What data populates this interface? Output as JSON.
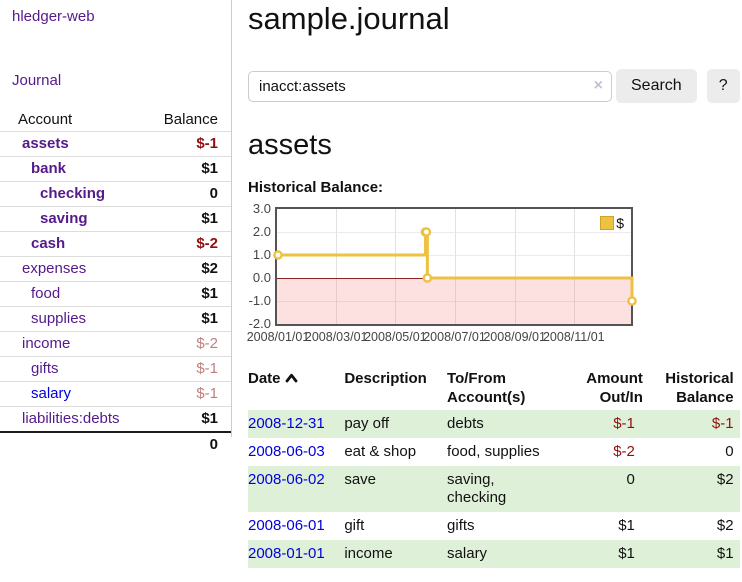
{
  "sidebar": {
    "brand": "hledger-web",
    "nav": {
      "journal": "Journal"
    },
    "accounts_table": {
      "headers": {
        "account": "Account",
        "balance": "Balance"
      },
      "rows": [
        {
          "name": "assets",
          "depth": 0,
          "row_class": "emph",
          "balance": "$-1",
          "balance_class": "neg-strong"
        },
        {
          "name": "bank",
          "depth": 1,
          "row_class": "emph",
          "balance": "$1",
          "balance_class": ""
        },
        {
          "name": "checking",
          "depth": 2,
          "row_class": "emph",
          "balance": "0",
          "balance_class": ""
        },
        {
          "name": "saving",
          "depth": 2,
          "row_class": "emph",
          "balance": "$1",
          "balance_class": ""
        },
        {
          "name": "cash",
          "depth": 1,
          "row_class": "emph",
          "balance": "$-2",
          "balance_class": "neg-strong"
        },
        {
          "name": "expenses",
          "depth": 0,
          "row_class": "",
          "balance": "$2",
          "balance_class": ""
        },
        {
          "name": "food",
          "depth": 1,
          "row_class": "",
          "balance": "$1",
          "balance_class": ""
        },
        {
          "name": "supplies",
          "depth": 1,
          "row_class": "",
          "balance": "$1",
          "balance_class": ""
        },
        {
          "name": "income",
          "depth": 0,
          "row_class": "",
          "balance": "$-2",
          "balance_class": "neg-dim"
        },
        {
          "name": "gifts",
          "depth": 1,
          "row_class": "",
          "balance": "$-1",
          "balance_class": "neg-dim"
        },
        {
          "name": "salary",
          "depth": 1,
          "row_class": "",
          "link_class": "blue",
          "balance": "$-1",
          "balance_class": "neg-dim"
        },
        {
          "name": "liabilities:debts",
          "depth": 0,
          "row_class": "",
          "balance": "$1",
          "balance_class": ""
        }
      ],
      "total": "0"
    }
  },
  "header": {
    "title": "sample.journal"
  },
  "search": {
    "query": "inacct:assets",
    "clear_icon": "×",
    "button": "Search",
    "help_button": "?"
  },
  "account_page": {
    "title": "assets",
    "chart_label": "Historical Balance:"
  },
  "chart_data": {
    "type": "line",
    "title": "Historical Balance:",
    "step_line": true,
    "x_start": "2008/01/01",
    "x_end": "2008/12/31",
    "ylim": [
      -2.0,
      3.0
    ],
    "yticks": [
      "3.0",
      "2.0",
      "1.0",
      "0.0",
      "-1.0",
      "-2.0"
    ],
    "xticks": [
      "2008/01/01",
      "2008/03/01",
      "2008/05/01",
      "2008/07/01",
      "2008/09/01",
      "2008/11/01"
    ],
    "grid": true,
    "legend_position": "top-right",
    "negative_region_color": "#fbdada",
    "zero_line_color": "#8c2423",
    "series": [
      {
        "name": "$",
        "color": "#edc240",
        "points": [
          {
            "date": "2008-01-01",
            "value": 1.0
          },
          {
            "date": "2008-06-01",
            "value": 2.0
          },
          {
            "date": "2008-06-02",
            "value": 2.0
          },
          {
            "date": "2008-06-03",
            "value": 0.0
          },
          {
            "date": "2008-12-31",
            "value": -1.0
          }
        ]
      }
    ]
  },
  "register": {
    "headers": {
      "date": "Date",
      "description": "Description",
      "accounts": "To/From\nAccount(s)",
      "amount": "Amount\nOut/In",
      "balance": "Historical\nBalance"
    },
    "rows": [
      {
        "date": "2008-12-31",
        "description": "pay off",
        "accounts": "debts",
        "amount": "$-1",
        "amount_class": "neg",
        "balance": "$-1",
        "balance_class": "neg"
      },
      {
        "date": "2008-06-03",
        "description": "eat & shop",
        "accounts": "food, supplies",
        "amount": "$-2",
        "amount_class": "neg",
        "balance": "0",
        "balance_class": ""
      },
      {
        "date": "2008-06-02",
        "description": "save",
        "accounts": "saving, checking",
        "amount": "0",
        "amount_class": "",
        "balance": "$2",
        "balance_class": ""
      },
      {
        "date": "2008-06-01",
        "description": "gift",
        "accounts": "gifts",
        "amount": "$1",
        "amount_class": "",
        "balance": "$2",
        "balance_class": ""
      },
      {
        "date": "2008-01-01",
        "description": "income",
        "accounts": "salary",
        "amount": "$1",
        "amount_class": "",
        "balance": "$1",
        "balance_class": ""
      }
    ]
  },
  "colors": {
    "link_purple": "#551a8b",
    "link_blue": "#0000dd",
    "negative_strong": "#8f1010",
    "negative_dim": "#bf7f7e",
    "row_green": "#dff0d8",
    "series_yellow": "#edc240",
    "plot_border": "#545454"
  }
}
